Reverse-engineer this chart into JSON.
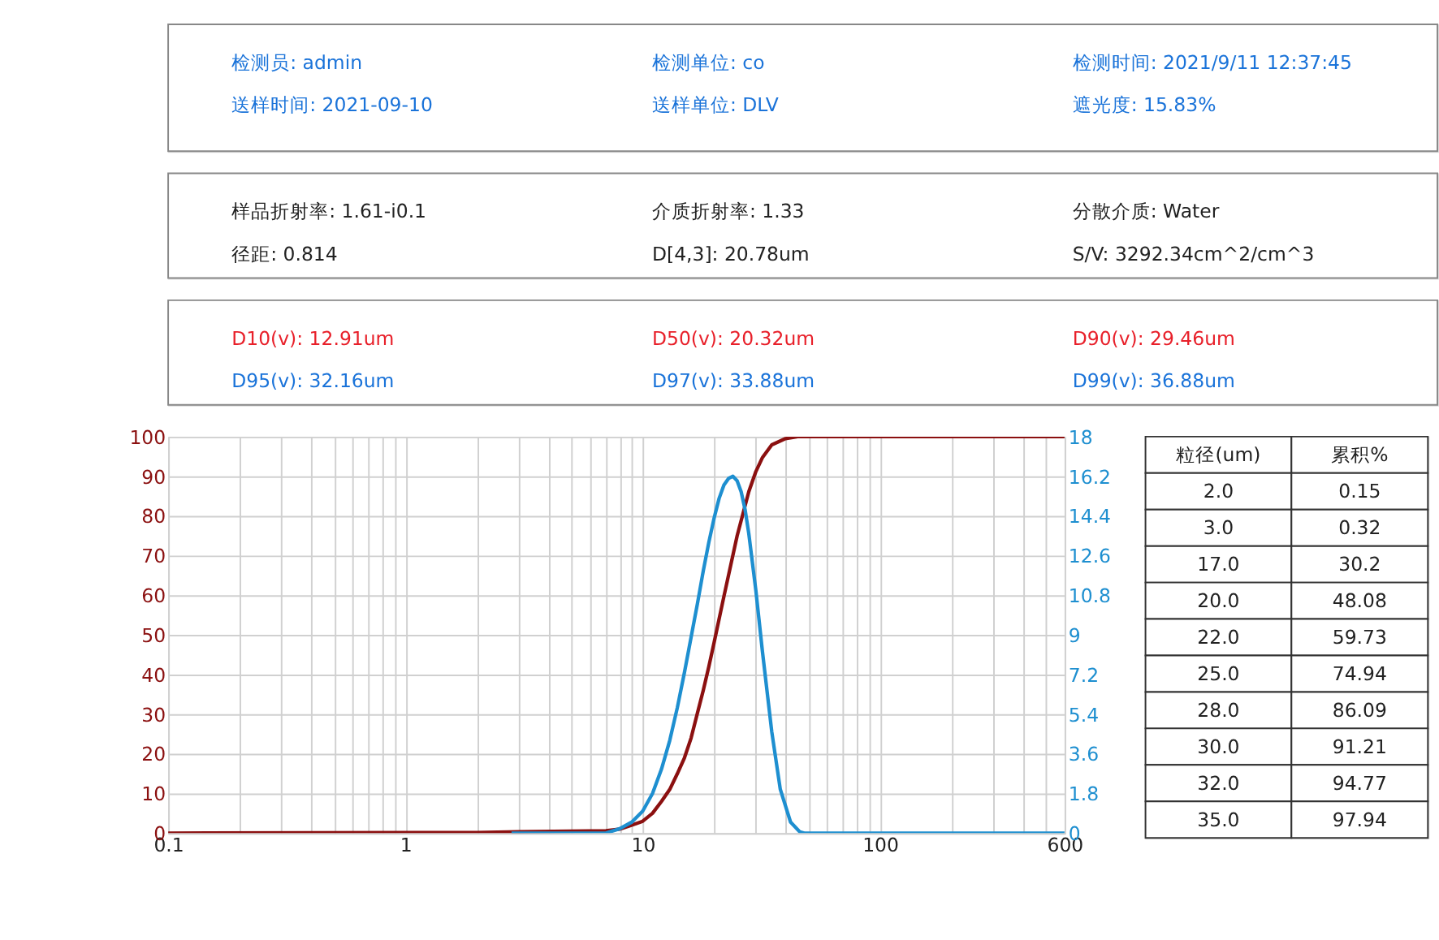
{
  "chart_data": {
    "type": "line",
    "log": "x",
    "grid": true,
    "xlim": [
      0.1,
      600
    ],
    "xticks": [
      0.1,
      {
        "value": 0.2,
        "label": null
      },
      {
        "value": 0.3,
        "label": null
      },
      {
        "value": 0.4,
        "label": null
      },
      {
        "value": 0.5,
        "label": null
      },
      {
        "value": 0.6,
        "label": null
      },
      {
        "value": 0.7,
        "label": null
      },
      {
        "value": 0.8,
        "label": null
      },
      {
        "value": 0.9,
        "label": null
      },
      1,
      {
        "value": 2,
        "label": null
      },
      {
        "value": 3,
        "label": null
      },
      {
        "value": 4,
        "label": null
      },
      {
        "value": 5,
        "label": null
      },
      {
        "value": 6,
        "label": null
      },
      {
        "value": 7,
        "label": null
      },
      {
        "value": 8,
        "label": null
      },
      {
        "value": 9,
        "label": null
      },
      10,
      {
        "value": 20,
        "label": null
      },
      {
        "value": 30,
        "label": null
      },
      {
        "value": 40,
        "label": null
      },
      {
        "value": 50,
        "label": null
      },
      {
        "value": 60,
        "label": null
      },
      {
        "value": 70,
        "label": null
      },
      {
        "value": 80,
        "label": null
      },
      {
        "value": 90,
        "label": null
      },
      100,
      {
        "value": 200,
        "label": null
      },
      {
        "value": 300,
        "label": null
      },
      {
        "value": 400,
        "label": null
      },
      {
        "value": 500,
        "label": null
      },
      600
    ],
    "ylim": [
      0,
      100
    ],
    "yticks": [
      0,
      10,
      20,
      30,
      40,
      50,
      60,
      70,
      80,
      90,
      100
    ],
    "y2lim": [
      0,
      18
    ],
    "y2ticks": [
      0,
      1.8,
      3.6,
      5.4,
      7.2,
      9,
      10.8,
      12.6,
      14.4,
      16.2,
      18
    ],
    "series": [
      {
        "color": "#8b1010",
        "x": [
          0.1,
          2.0,
          3.0,
          7,
          8,
          9,
          10,
          11,
          12,
          13,
          14,
          15,
          16,
          17,
          18,
          19,
          20,
          22,
          25,
          28,
          30,
          32,
          35,
          40,
          45,
          600
        ],
        "values": [
          0,
          0.15,
          0.32,
          0.6,
          1,
          2,
          3,
          5,
          8,
          11,
          15,
          19,
          24,
          30.2,
          36,
          42,
          48.08,
          59.73,
          74.94,
          86.09,
          91.21,
          94.77,
          97.94,
          99.5,
          100,
          100
        ]
      },
      {
        "color": "#1e8fd0",
        "axis": "y2",
        "x": [
          2.8,
          7,
          8,
          9,
          10,
          11,
          12,
          13,
          14,
          15,
          16,
          17,
          18,
          19,
          20,
          21,
          22,
          23,
          24,
          25,
          26,
          27,
          28,
          30,
          32,
          35,
          38,
          42,
          46,
          48,
          600
        ],
        "values": [
          0,
          0,
          0.2,
          0.5,
          1.0,
          1.8,
          2.9,
          4.2,
          5.7,
          7.3,
          8.9,
          10.4,
          11.9,
          13.2,
          14.3,
          15.2,
          15.8,
          16.1,
          16.2,
          16.0,
          15.5,
          14.7,
          13.6,
          11.0,
          8.2,
          4.6,
          2.0,
          0.5,
          0.05,
          0,
          0
        ]
      }
    ],
    "annotations": [
      "检测员: admin",
      "检测单位: co",
      "检测时间: 2021/9/11 12:37:45",
      "送样时间: 2021-09-10",
      "送样单位: DLV",
      "遮光度: 15.83%",
      "样品折射率: 1.61-i0.1",
      "介质折射率: 1.33",
      "分散介质: Water",
      "径距: 0.814",
      "D[4,3]: 20.78um",
      "S/V: 3292.34cm^2/cm^3",
      "D10(v): 12.91um",
      "D50(v): 20.32um",
      "D90(v): 29.46um",
      "D95(v): 32.16um",
      "D97(v): 33.88um",
      "D99(v): 36.88um",
      "粒径(um)",
      "累积%",
      "2.0",
      "0.15",
      "3.0",
      "0.32",
      "17.0",
      "30.2",
      "20.0",
      "48.08",
      "22.0",
      "59.73",
      "25.0",
      "74.94",
      "28.0",
      "86.09",
      "30.0",
      "91.21",
      "32.0",
      "94.77",
      "35.0",
      "97.94"
    ]
  }
}
